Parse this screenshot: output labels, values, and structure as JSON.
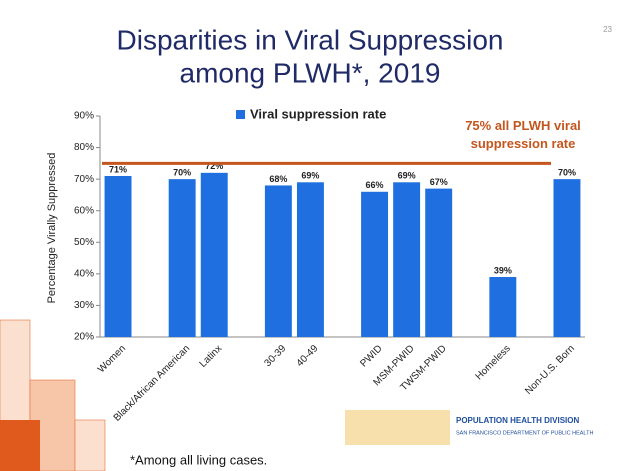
{
  "chart_data": {
    "type": "bar",
    "title": "Disparities in Viral Suppression among PLWH*, 2019",
    "y_label": "Percentage Virally Suppressed",
    "categories": [
      "Women",
      null,
      "Black/African American",
      "Latinx",
      null,
      "30-39",
      "40-49",
      null,
      "PWID",
      "MSM-PWID",
      "TWSM-PWID",
      null,
      "Homeless",
      null,
      "Non-U.S. Born"
    ],
    "series": [
      {
        "name": "Viral suppression rate",
        "color": "#1f6fe0",
        "values": [
          71,
          null,
          70,
          72,
          null,
          68,
          69,
          null,
          66,
          69,
          67,
          null,
          39,
          null,
          70
        ],
        "value_labels": [
          "71%",
          null,
          "70%",
          "72%",
          null,
          "68%",
          "69%",
          null,
          "66%",
          "69%",
          "67%",
          null,
          "39%",
          null,
          "70%"
        ]
      }
    ],
    "ylim": [
      20,
      90
    ],
    "yticks": [
      {
        "value": 20,
        "label": "20%"
      },
      {
        "value": 30,
        "label": "30%"
      },
      {
        "value": 40,
        "label": "40%"
      },
      {
        "value": 50,
        "label": "50%"
      },
      {
        "value": 60,
        "label": "60%"
      },
      {
        "value": 70,
        "label": "70%"
      },
      {
        "value": 80,
        "label": "80%"
      },
      {
        "value": 90,
        "label": "90%"
      }
    ],
    "reference_line": {
      "value": 75,
      "label": "75% all PLWH viral suppression rate",
      "color": "#c4561d"
    },
    "grid": false
  },
  "slide": {
    "page_number": "23",
    "footnote": "*Among all living cases.",
    "logo": {
      "title": "POPULATION HEALTH DIVISION",
      "subtitle": "SAN FRANCISCO DEPARTMENT OF PUBLIC HEALTH"
    }
  }
}
